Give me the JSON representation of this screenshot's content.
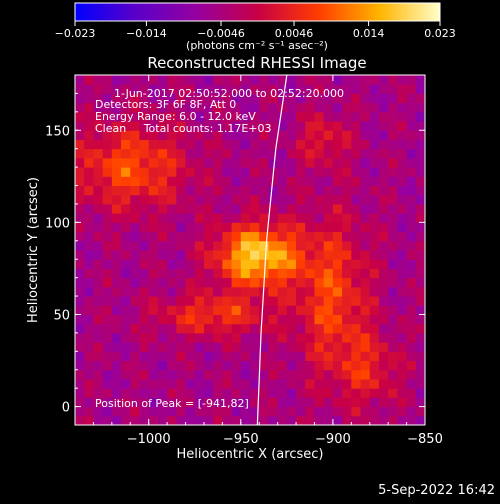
{
  "colorbar": {
    "tick_labels": [
      "-0.023",
      "-0.014",
      "-0.0046",
      "0.0046",
      "0.014",
      "0.023"
    ],
    "units_label": "(photons cm⁻² s⁻¹ asec⁻²)",
    "colormap": [
      "#0000ff",
      "#5a00c8",
      "#9600a0",
      "#c80046",
      "#ff3c00",
      "#ffb400",
      "#ffffc8"
    ]
  },
  "chart_data": {
    "type": "heatmap",
    "title": "Reconstructed RHESSI Image",
    "xlabel": "Heliocentric X (arcsec)",
    "ylabel": "Heliocentric Y (arcsec)",
    "xlim": [
      -1040,
      -850
    ],
    "ylim": [
      -10,
      180
    ],
    "x_ticks": [
      -1000,
      -950,
      -900,
      -850
    ],
    "x_tick_labels": [
      "−1000",
      "−950",
      "−900",
      "−850"
    ],
    "y_ticks": [
      0,
      50,
      100,
      150
    ],
    "y_tick_labels": [
      "0",
      "50",
      "100",
      "150"
    ],
    "value_range": [
      -0.023,
      0.023
    ],
    "sources": [
      {
        "x": -941,
        "y": 82,
        "sigma_x": 16,
        "sigma_y": 12,
        "peak": 0.023
      },
      {
        "x": -1010,
        "y": 130,
        "sigma_x": 22,
        "sigma_y": 16,
        "peak": 0.013
      },
      {
        "x": -900,
        "y": 60,
        "sigma_x": 14,
        "sigma_y": 30,
        "peak": 0.012
      },
      {
        "x": -965,
        "y": 50,
        "sigma_x": 22,
        "sigma_y": 8,
        "peak": 0.011
      },
      {
        "x": -905,
        "y": 145,
        "sigma_x": 10,
        "sigma_y": 10,
        "peak": 0.008
      },
      {
        "x": -880,
        "y": 20,
        "sigma_x": 12,
        "sigma_y": 14,
        "peak": 0.008
      }
    ],
    "limb_line": [
      [
        -941,
        -10
      ],
      [
        -939,
        40
      ],
      [
        -936,
        90
      ],
      [
        -931,
        140
      ],
      [
        -925,
        180
      ]
    ],
    "annotations": [
      "1-Jun-2017 02:50:52.000 to 02:52:20.000",
      "Detectors: 3F 6F 8F, Att 0",
      "Energy Range: 6.0 - 12.0 keV",
      "Clean     Total counts: 1.17E+03"
    ],
    "peak_label": "Position of Peak = [-941,82]"
  },
  "timestamp": "5-Sep-2022 16:42"
}
